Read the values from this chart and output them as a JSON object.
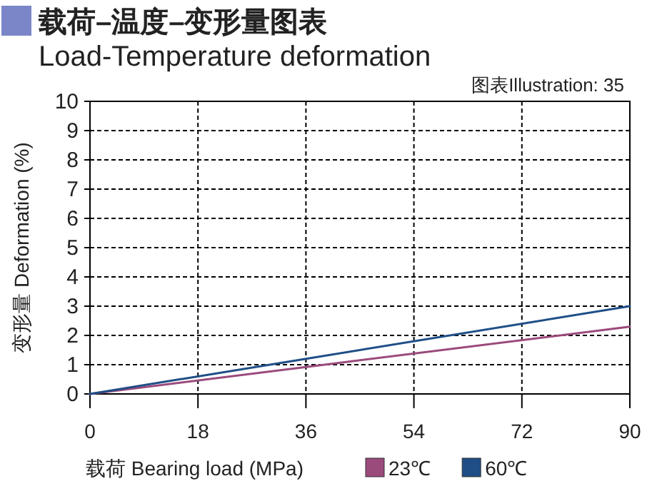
{
  "chart_data": {
    "type": "line",
    "title": "载荷–温度–变形量图表",
    "subtitle": "Load-Temperature deformation",
    "xlabel": "载荷 Bearing load (MPa)",
    "ylabel": "变形量 Deformation (%)",
    "annotations": [
      "图表Illustration: 35"
    ],
    "x": [
      0,
      90
    ],
    "series": [
      {
        "name": "23℃",
        "color": "#9b4a7c",
        "values": [
          0,
          2.3
        ]
      },
      {
        "name": "60℃",
        "color": "#1f4e86",
        "values": [
          0,
          3.0
        ]
      }
    ],
    "xlim": [
      0,
      90
    ],
    "ylim": [
      0,
      10
    ],
    "xticks": [
      0,
      18,
      36,
      54,
      72,
      90
    ],
    "yticks": [
      0,
      1,
      2,
      3,
      4,
      5,
      6,
      7,
      8,
      9,
      10
    ],
    "grid": true,
    "legend": "bottom"
  }
}
